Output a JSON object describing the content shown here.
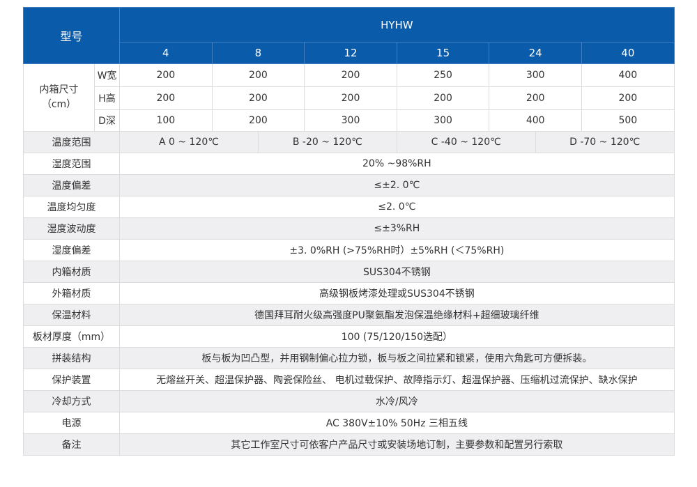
{
  "header": {
    "model_label": "型号",
    "series": "HYHW",
    "models": [
      "4",
      "8",
      "12",
      "15",
      "24",
      "40"
    ]
  },
  "inner_size": {
    "label": "内箱尺寸",
    "unit": "（cm）",
    "rows": [
      {
        "dim": "W宽",
        "values": [
          "200",
          "200",
          "200",
          "250",
          "300",
          "400"
        ]
      },
      {
        "dim": "H高",
        "values": [
          "200",
          "200",
          "200",
          "200",
          "200",
          "200"
        ]
      },
      {
        "dim": "D深",
        "values": [
          "100",
          "200",
          "300",
          "300",
          "400",
          "500"
        ]
      }
    ]
  },
  "temp_range": {
    "label": "温度范围",
    "options": [
      "A 0 ~ 120℃",
      "B -20 ~ 120℃",
      "C -40 ~ 120℃",
      "D -70 ~ 120℃"
    ]
  },
  "rows": [
    {
      "label": "湿度范围",
      "value": "20% ~98%RH"
    },
    {
      "label": "温度偏差",
      "value": "≤±2. 0℃"
    },
    {
      "label": "温度均匀度",
      "value": "≤2. 0℃"
    },
    {
      "label": "湿度波动度",
      "value": "≤±3%RH"
    },
    {
      "label": "湿度偏差",
      "value": "±3. 0%RH (>75%RH时）±5%RH (＜75%RH)"
    },
    {
      "label": "内箱材质",
      "value": "SUS304不锈钢"
    },
    {
      "label": "外箱材质",
      "value": "高级钢板烤漆处理或SUS304不锈钢"
    },
    {
      "label": "保温材料",
      "value": "德国拜耳耐火级高强度PU聚氨酯发泡保温绝缘材料+超细玻璃纤维"
    },
    {
      "label": "板材厚度（mm）",
      "value": "100 (75/120/150选配）"
    },
    {
      "label": "拼装结构",
      "value": "板与板为凹凸型，并用钢制偏心拉力锁，板与板之间拉紧和锁紧，使用六角匙可方便拆装。"
    },
    {
      "label": "保护装置",
      "value": "无熔丝开关、超温保护器、陶瓷保险丝、 电机过载保护、故障指示灯、超温保护器、压缩机过流保护、缺水保护"
    },
    {
      "label": "冷却方式",
      "value": "水冷/风冷"
    },
    {
      "label": "电源",
      "value": "AC 380V±10% 50Hz 三相五线"
    },
    {
      "label": "备注",
      "value": "其它工作室尺寸可依客户产品尺寸或安装场地订制，主要参数和配置另行索取"
    }
  ],
  "colors": {
    "header_bg": "#0b5bab",
    "row_alt": "#efeff1"
  }
}
